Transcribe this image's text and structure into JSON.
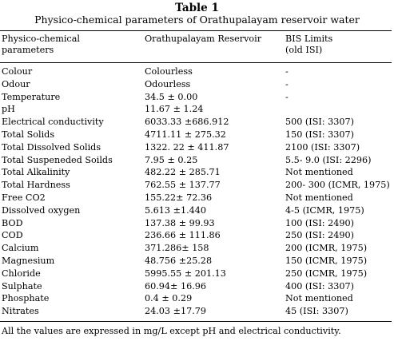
{
  "table": {
    "title": "Table 1",
    "subtitle": "Physico-chemical parameters of Orathupalayam reservoir water",
    "headers": {
      "param": [
        "Physico-chemical",
        "parameters"
      ],
      "reservoir": [
        "Orathupalayam Reservoir"
      ],
      "bis": [
        "BIS Limits",
        "(old ISI)"
      ]
    },
    "rows": [
      {
        "param": "Colour",
        "value": "Colourless",
        "limit": "-"
      },
      {
        "param": "Odour",
        "value": "Odourless",
        "limit": "-"
      },
      {
        "param": "Temperature",
        "value": "34.5 ± 0.00",
        "limit": "-"
      },
      {
        "param": "pH",
        "value": "11.67 ± 1.24",
        "limit": ""
      },
      {
        "param": "Electrical conductivity",
        "value": "6033.33 ±686.912",
        "limit": "500 (ISI: 3307)"
      },
      {
        "param": "Total Solids",
        "value": "4711.11 ± 275.32",
        "limit": "150 (ISI: 3307)"
      },
      {
        "param": "Total Dissolved Solids",
        "value": "1322. 22 ± 411.87",
        "limit": "2100 (ISI: 3307)"
      },
      {
        "param": "Total Suspeneded Soilds",
        "value": "7.95 ± 0.25",
        "limit": "5.5- 9.0 (ISI: 2296)"
      },
      {
        "param": "Total Alkalinity",
        "value": "482.22 ± 285.71",
        "limit": "Not mentioned"
      },
      {
        "param": "Total Hardness",
        "value": "762.55 ± 137.77",
        "limit": "200- 300 (ICMR, 1975)"
      },
      {
        "param": "Free CO2",
        "value": "155.22± 72.36",
        "limit": "Not mentioned"
      },
      {
        "param": "Dissolved oxygen",
        "value": "5.613 ±1.440",
        "limit": "4-5 (ICMR, 1975)"
      },
      {
        "param": "BOD",
        "value": "137.38 ± 99.93",
        "limit": "100 (ISI: 2490)"
      },
      {
        "param": "COD",
        "value": "236.66 ± 111.86",
        "limit": "250 (ISI: 2490)"
      },
      {
        "param": "Calcium",
        "value": "371.286± 158",
        "limit": "200 (ICMR, 1975)"
      },
      {
        "param": "Magnesium",
        "value": "48.756 ±25.28",
        "limit": "150 (ICMR, 1975)"
      },
      {
        "param": "Chloride",
        "value": "5995.55 ± 201.13",
        "limit": "250 (ICMR, 1975)"
      },
      {
        "param": "Sulphate",
        "value": "60.94± 16.96",
        "limit": "400 (ISI: 3307)"
      },
      {
        "param": "Phosphate",
        "value": "0.4 ± 0.29",
        "limit": "Not mentioned"
      },
      {
        "param": "Nitrates",
        "value": "24.03 ±17.79",
        "limit": "45 (ISI: 3307)"
      }
    ],
    "footnote": "All the values are expressed in mg/L except pH and electrical conductivity."
  }
}
